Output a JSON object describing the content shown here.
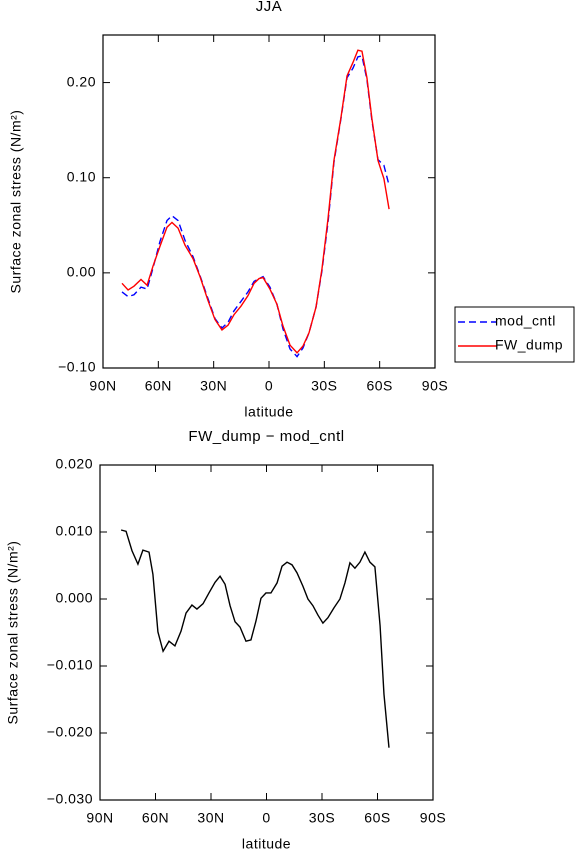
{
  "chart_data": [
    {
      "type": "line",
      "title": "JJA",
      "xlabel": "latitude",
      "ylabel": "Surface zonal stress (N/m²)",
      "x": [
        79.7,
        76.4,
        73.2,
        69.4,
        66.1,
        62.9,
        59.1,
        55.3,
        52.6,
        49.3,
        45.5,
        41.2,
        37.4,
        33.1,
        29.3,
        25.5,
        22.2,
        19.0,
        15.2,
        11.4,
        8.1,
        5.4,
        3.2,
        -0.5,
        -4.3,
        -7.6,
        -11.4,
        -15.2,
        -18.4,
        -21.7,
        -25.5,
        -28.7,
        -32.0,
        -35.2,
        -39.0,
        -42.3,
        -45.5,
        -48.2,
        -50.4,
        -53.1,
        -55.8,
        -59.1,
        -62.3,
        -65.1
      ],
      "series": [
        {
          "name": "mod_cntl",
          "color": "#0000ff",
          "line_style": "dashed",
          "values": [
            -0.02,
            -0.025,
            -0.023,
            -0.015,
            -0.017,
            0.005,
            0.033,
            0.055,
            0.06,
            0.055,
            0.034,
            0.017,
            -0.003,
            -0.027,
            -0.048,
            -0.058,
            -0.052,
            -0.04,
            -0.03,
            -0.02,
            -0.009,
            -0.006,
            -0.004,
            -0.015,
            -0.033,
            -0.059,
            -0.08,
            -0.088,
            -0.079,
            -0.063,
            -0.036,
            0.002,
            0.053,
            0.116,
            0.162,
            0.205,
            0.215,
            0.227,
            0.228,
            0.203,
            0.16,
            0.119,
            0.113,
            0.092
          ]
        },
        {
          "name": "FW_dump",
          "color": "#ff0000",
          "line_style": "solid",
          "values": [
            -0.011,
            -0.018,
            -0.014,
            -0.007,
            -0.013,
            0.007,
            0.028,
            0.048,
            0.053,
            0.047,
            0.029,
            0.015,
            -0.004,
            -0.029,
            -0.049,
            -0.06,
            -0.055,
            -0.044,
            -0.035,
            -0.024,
            -0.011,
            -0.006,
            -0.005,
            -0.017,
            -0.033,
            -0.056,
            -0.076,
            -0.084,
            -0.077,
            -0.063,
            -0.036,
            0.004,
            0.057,
            0.118,
            0.163,
            0.207,
            0.221,
            0.234,
            0.233,
            0.205,
            0.162,
            0.118,
            0.099,
            0.067
          ]
        }
      ],
      "xlim": [
        90,
        -90
      ],
      "xticks": [
        {
          "value": 90,
          "label": "90N"
        },
        {
          "value": 60,
          "label": "60N"
        },
        {
          "value": 30,
          "label": "30N"
        },
        0,
        {
          "value": -30,
          "label": "30S"
        },
        {
          "value": -60,
          "label": "60S"
        },
        {
          "value": -90,
          "label": "90S"
        }
      ],
      "ylim": [
        -0.1,
        0.25
      ],
      "yticks": [
        {
          "value": -0.1,
          "label": "−0.10"
        },
        {
          "value": 0,
          "label": "0.00"
        },
        {
          "value": 0.1,
          "label": "0.10"
        },
        {
          "value": 0.2,
          "label": "0.20"
        }
      ],
      "legend": "right"
    },
    {
      "type": "line",
      "title": "FW_dump − mod_cntl",
      "xlabel": "latitude",
      "ylabel": "Surface zonal stress (N/m²)",
      "x": [
        78.6,
        75.9,
        72.7,
        69.5,
        66.8,
        63.5,
        61.4,
        58.7,
        55.9,
        52.7,
        49.5,
        46.2,
        43.5,
        40.3,
        37.6,
        34.3,
        31.1,
        27.8,
        25.1,
        22.4,
        19.7,
        17.0,
        14.3,
        11.1,
        8.4,
        5.7,
        3.0,
        0.3,
        -2.4,
        -5.7,
        -8.4,
        -11.1,
        -13.8,
        -16.5,
        -19.7,
        -22.4,
        -25.1,
        -27.8,
        -30.5,
        -33.2,
        -36.5,
        -39.7,
        -42.4,
        -45.1,
        -47.8,
        -50.5,
        -53.2,
        -55.9,
        -58.6,
        -61.4,
        -63.5,
        -66.2
      ],
      "series": [
        {
          "color": "#000000",
          "line_style": "solid",
          "values": [
            0.0103,
            0.0101,
            0.0072,
            0.0052,
            0.0073,
            0.007,
            0.0037,
            -0.0049,
            -0.0078,
            -0.0063,
            -0.007,
            -0.0048,
            -0.0021,
            -0.0009,
            -0.0015,
            -0.0007,
            0.0009,
            0.0025,
            0.0034,
            0.0022,
            -0.001,
            -0.0034,
            -0.0042,
            -0.0063,
            -0.0061,
            -0.0033,
            0.0001,
            0.0009,
            0.0009,
            0.0024,
            0.0049,
            0.0055,
            0.0051,
            0.0039,
            0.0019,
            0.0,
            -0.001,
            -0.0024,
            -0.0036,
            -0.0028,
            -0.0013,
            0.0,
            0.0024,
            0.0054,
            0.0046,
            0.0055,
            0.007,
            0.0055,
            0.0048,
            -0.004,
            -0.0142,
            -0.0222
          ]
        }
      ],
      "xlim": [
        90,
        -90
      ],
      "xticks": [
        {
          "value": 90,
          "label": "90N"
        },
        {
          "value": 60,
          "label": "60N"
        },
        {
          "value": 30,
          "label": "30N"
        },
        0,
        {
          "value": -30,
          "label": "30S"
        },
        {
          "value": -60,
          "label": "60S"
        },
        {
          "value": -90,
          "label": "90S"
        }
      ],
      "ylim": [
        -0.03,
        0.02
      ],
      "yticks": [
        {
          "value": -0.03,
          "label": "−0.030"
        },
        {
          "value": -0.02,
          "label": "−0.020"
        },
        {
          "value": -0.01,
          "label": "−0.010"
        },
        {
          "value": 0,
          "label": "0.000"
        },
        {
          "value": 0.01,
          "label": "0.010"
        },
        {
          "value": 0.02,
          "label": "0.020"
        }
      ]
    }
  ]
}
